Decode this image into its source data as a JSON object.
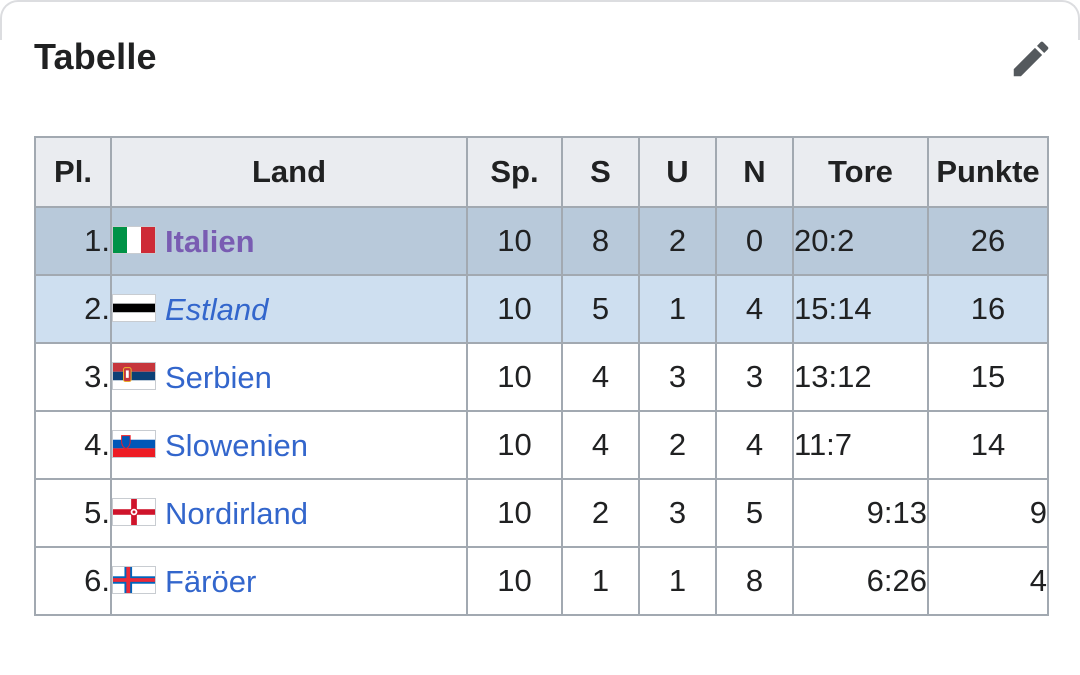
{
  "section": {
    "title": "Tabelle",
    "edit_icon": "pencil-icon"
  },
  "table": {
    "headers": {
      "pos": "Pl.",
      "country": "Land",
      "played": "Sp.",
      "won": "S",
      "drawn": "U",
      "lost": "N",
      "goals": "Tore",
      "points": "Punkte"
    },
    "rows": [
      {
        "pos": "1.",
        "country": "Italien",
        "flag": "italy-flag",
        "played": "10",
        "won": "8",
        "drawn": "2",
        "lost": "0",
        "goals": "20:2",
        "points": "26"
      },
      {
        "pos": "2.",
        "country": "Estland",
        "flag": "estonia-flag",
        "played": "10",
        "won": "5",
        "drawn": "1",
        "lost": "4",
        "goals": "15:14",
        "points": "16"
      },
      {
        "pos": "3.",
        "country": "Serbien",
        "flag": "serbia-flag",
        "played": "10",
        "won": "4",
        "drawn": "3",
        "lost": "3",
        "goals": "13:12",
        "points": "15"
      },
      {
        "pos": "4.",
        "country": "Slowenien",
        "flag": "slovenia-flag",
        "played": "10",
        "won": "4",
        "drawn": "2",
        "lost": "4",
        "goals": "11:7",
        "points": "14"
      },
      {
        "pos": "5.",
        "country": "Nordirland",
        "flag": "northern-ireland-flag",
        "played": "10",
        "won": "2",
        "drawn": "3",
        "lost": "5",
        "goals": "9:13",
        "points": "9"
      },
      {
        "pos": "6.",
        "country": "Färöer",
        "flag": "faroe-islands-flag",
        "played": "10",
        "won": "1",
        "drawn": "1",
        "lost": "8",
        "goals": "6:26",
        "points": "4"
      }
    ]
  },
  "colors": {
    "header_bg": "#eaecf0",
    "row1_bg": "#b8c9da",
    "row2_bg": "#cedff0",
    "border": "#a2a9b1",
    "link": "#3366cc",
    "visited_link": "#795cb2",
    "text": "#202122"
  }
}
